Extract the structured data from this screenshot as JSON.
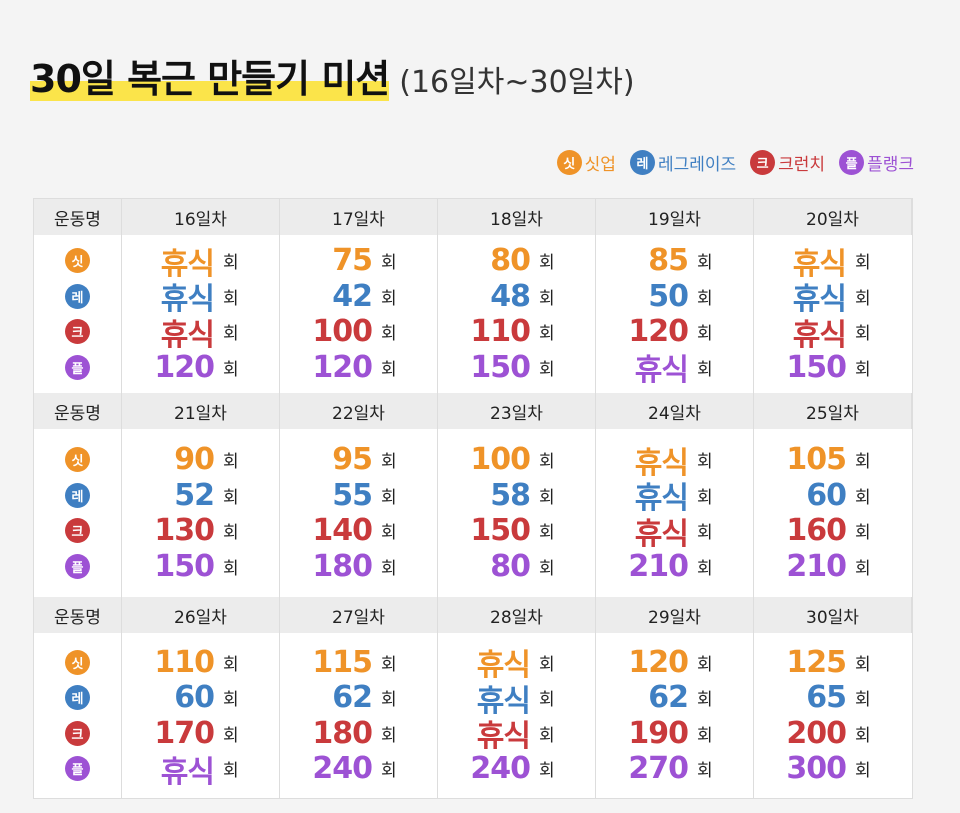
{
  "header": {
    "title": "30일 복근 만들기 미션",
    "subtitle": "(16일차~30일차)"
  },
  "legend": [
    {
      "icon": "싯",
      "label": "싯업",
      "color": "#ef9328"
    },
    {
      "icon": "레",
      "label": "레그레이즈",
      "color": "#3f7fc2"
    },
    {
      "icon": "크",
      "label": "크런치",
      "color": "#c93a3c"
    },
    {
      "icon": "플",
      "label": "플랭크",
      "color": "#9d52d4"
    }
  ],
  "table": {
    "header_label": "운동명",
    "unit": "회",
    "blocks": [
      {
        "days": [
          "16일차",
          "17일차",
          "18일차",
          "19일차",
          "20일차"
        ],
        "rows": [
          [
            "휴식",
            75,
            80,
            85,
            "휴식"
          ],
          [
            "휴식",
            42,
            48,
            50,
            "휴식"
          ],
          [
            "휴식",
            100,
            110,
            120,
            "휴식"
          ],
          [
            120,
            120,
            150,
            "휴식",
            150
          ]
        ]
      },
      {
        "days": [
          "21일차",
          "22일차",
          "23일차",
          "24일차",
          "25일차"
        ],
        "rows": [
          [
            90,
            95,
            100,
            "휴식",
            105
          ],
          [
            52,
            55,
            58,
            "휴식",
            60
          ],
          [
            130,
            140,
            150,
            "휴식",
            160
          ],
          [
            150,
            180,
            80,
            210,
            210
          ]
        ]
      },
      {
        "days": [
          "26일차",
          "27일차",
          "28일차",
          "29일차",
          "30일차"
        ],
        "rows": [
          [
            110,
            115,
            "휴식",
            120,
            125
          ],
          [
            60,
            62,
            "휴식",
            62,
            65
          ],
          [
            170,
            180,
            "휴식",
            190,
            200
          ],
          [
            "휴식",
            240,
            240,
            270,
            300
          ]
        ]
      }
    ]
  }
}
